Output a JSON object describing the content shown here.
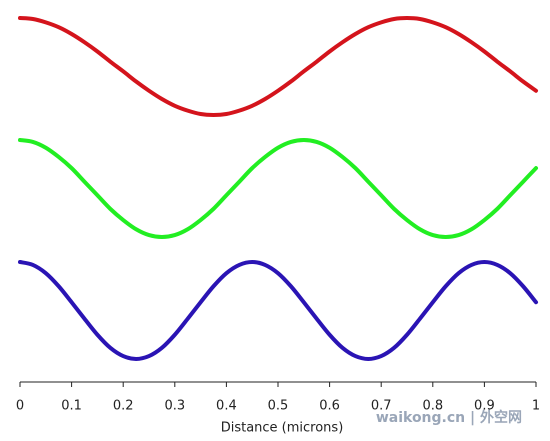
{
  "chart_data": {
    "type": "line",
    "x_label": "Distance (microns)",
    "watermark": "waikong.cn | 外空网",
    "xlim": [
      0,
      1
    ],
    "xticks": [
      0,
      0.1,
      0.2,
      0.3,
      0.4,
      0.5,
      0.6,
      0.7,
      0.8,
      0.9,
      1
    ],
    "x": [
      0,
      0.025,
      0.05,
      0.075,
      0.1,
      0.125,
      0.15,
      0.175,
      0.2,
      0.225,
      0.25,
      0.275,
      0.3,
      0.325,
      0.35,
      0.375,
      0.4,
      0.425,
      0.45,
      0.475,
      0.5,
      0.525,
      0.55,
      0.575,
      0.6,
      0.625,
      0.65,
      0.675,
      0.7,
      0.725,
      0.75,
      0.775,
      0.8,
      0.825,
      0.85,
      0.875,
      0.9,
      0.925,
      0.95,
      0.975,
      1
    ],
    "series": [
      {
        "color": "#d4141c",
        "values": [
          1,
          0.98,
          0.91,
          0.81,
          0.67,
          0.5,
          0.31,
          0.1,
          -0.1,
          -0.31,
          -0.5,
          -0.67,
          -0.81,
          -0.91,
          -0.98,
          -1,
          -0.98,
          -0.91,
          -0.81,
          -0.67,
          -0.5,
          -0.31,
          -0.1,
          0.1,
          0.31,
          0.5,
          0.67,
          0.81,
          0.91,
          0.98,
          1,
          0.98,
          0.91,
          0.81,
          0.67,
          0.5,
          0.31,
          0.1,
          -0.1,
          -0.31,
          -0.5
        ]
      },
      {
        "color": "#22ee22",
        "values": [
          1,
          0.96,
          0.84,
          0.65,
          0.42,
          0.14,
          -0.14,
          -0.42,
          -0.65,
          -0.84,
          -0.96,
          -1,
          -0.96,
          -0.84,
          -0.65,
          -0.42,
          -0.14,
          0.14,
          0.42,
          0.65,
          0.84,
          0.96,
          1,
          0.96,
          0.84,
          0.65,
          0.42,
          0.14,
          -0.14,
          -0.42,
          -0.65,
          -0.84,
          -0.96,
          -1,
          -0.96,
          -0.84,
          -0.65,
          -0.42,
          -0.14,
          0.14,
          0.42
        ]
      },
      {
        "color": "#2a14b4",
        "values": [
          1,
          0.94,
          0.77,
          0.5,
          0.17,
          -0.17,
          -0.5,
          -0.77,
          -0.94,
          -1,
          -0.94,
          -0.77,
          -0.5,
          -0.17,
          0.17,
          0.5,
          0.77,
          0.94,
          1,
          0.94,
          0.77,
          0.5,
          0.17,
          -0.17,
          -0.5,
          -0.77,
          -0.94,
          -1,
          -0.94,
          -0.77,
          -0.5,
          -0.17,
          0.17,
          0.5,
          0.77,
          0.94,
          1,
          0.94,
          0.77,
          0.5,
          0.17
        ]
      }
    ]
  }
}
